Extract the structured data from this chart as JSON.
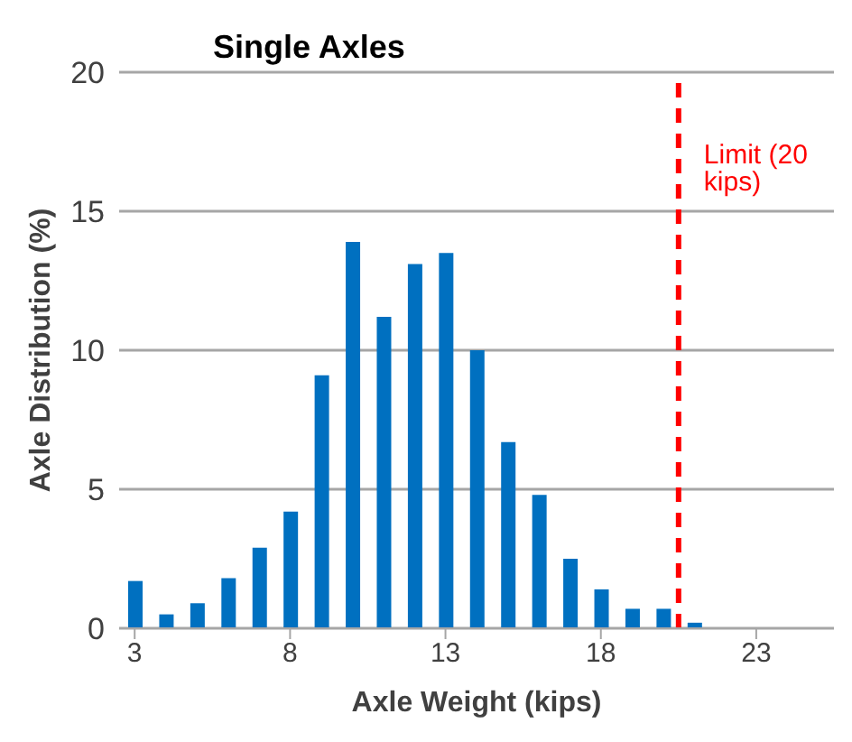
{
  "chart_data": {
    "type": "bar",
    "title": "Single Axles",
    "xlabel": "Axle Weight (kips)",
    "ylabel": "Axle Distribution (%)",
    "x": [
      3,
      4,
      5,
      6,
      7,
      8,
      9,
      10,
      11,
      12,
      13,
      14,
      15,
      16,
      17,
      18,
      19,
      20,
      21,
      22,
      23,
      24,
      25
    ],
    "values": [
      1.7,
      0.5,
      0.9,
      1.8,
      2.9,
      4.2,
      9.1,
      13.9,
      11.2,
      13.1,
      13.5,
      10.0,
      6.7,
      4.8,
      2.5,
      1.4,
      0.7,
      0.7,
      0.2,
      0,
      0,
      0,
      0
    ],
    "color": "#0070c0",
    "xlim": [
      2.5,
      25.5
    ],
    "xticks": [
      3,
      8,
      13,
      18,
      23
    ],
    "ylim": [
      0,
      20
    ],
    "yticks": [
      0,
      5,
      10,
      15,
      20
    ],
    "grid": "y",
    "legend": false,
    "ref_lines": [
      {
        "axis": "x",
        "value": 20.5,
        "label": "Limit (20 kips)",
        "color": "#ff0000",
        "line_style": "dashed"
      }
    ]
  }
}
